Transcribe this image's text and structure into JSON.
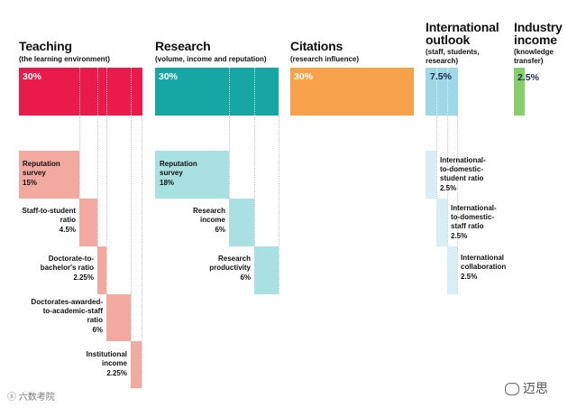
{
  "colors": {
    "teaching": "#ea1a4b",
    "teaching_light": "#f2a99f",
    "research": "#16a7a4",
    "research_light": "#a9e1e2",
    "citations": "#f8a14b",
    "international": "#9ed8e7",
    "industry": "#86cf6c"
  },
  "categories": {
    "teaching": {
      "title": "Teaching",
      "subtitle": "(the learning environment)",
      "percent": "30%"
    },
    "research": {
      "title": "Research",
      "subtitle": "(volume, income and reputation)",
      "percent": "30%"
    },
    "citations": {
      "title": "Citations",
      "subtitle": "(research influence)",
      "percent": "30%"
    },
    "international": {
      "title_1": "International",
      "title_2": "outlook",
      "subtitle_1": "(staff, students,",
      "subtitle_2": "research)",
      "percent": "7.5%"
    },
    "industry": {
      "title_1": "Industry",
      "title_2": "income",
      "subtitle_1": "(knowledge",
      "subtitle_2": "transfer)",
      "percent": "2.5%"
    }
  },
  "teaching_items": [
    {
      "l1": "Reputation",
      "l2": "survey",
      "value": "15%"
    },
    {
      "l1": "Staff-to-student",
      "l2": "ratio",
      "value": "4.5%"
    },
    {
      "l1": "Doctorate-to-",
      "l2": "bachelor's ratio",
      "value": "2.25%"
    },
    {
      "l1": "Doctorates-awarded-",
      "l2": "to-academic-staff",
      "l3": "ratio",
      "value": "6%"
    },
    {
      "l1": "Institutional",
      "l2": "income",
      "value": "2.25%"
    }
  ],
  "research_items": [
    {
      "l1": "Reputation",
      "l2": "survey",
      "value": "18%"
    },
    {
      "l1": "Research",
      "l2": "income",
      "value": "6%"
    },
    {
      "l1": "Research",
      "l2": "productivity",
      "value": "6%"
    }
  ],
  "international_items": [
    {
      "l1": "International-",
      "l2": "to-domestic-",
      "l3": "student ratio",
      "value": "2.5%"
    },
    {
      "l1": "International-",
      "l2": "to-domestic-",
      "l3": "staff ratio",
      "value": "2.5%"
    },
    {
      "l1": "International",
      "l2": "collaboration",
      "value": "2.5%"
    }
  ],
  "watermarks": {
    "left": "六数考院",
    "right": "迈思"
  }
}
